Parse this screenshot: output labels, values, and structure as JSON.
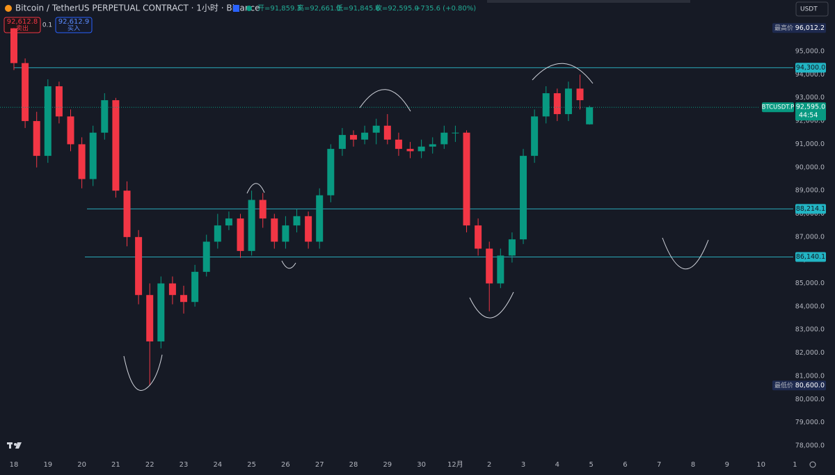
{
  "header": {
    "symbol": "Bitcoin / TetherUS PERPETUAL CONTRACT · 1小时 · Binance",
    "open_label": "开=91,859.3",
    "high_label": "高=92,661.0",
    "low_label": "低=91,845.8",
    "close_label": "收=92,595.0",
    "change": "+735.6 (+0.80%)",
    "sell_price": "92,612.8",
    "sell": "卖出",
    "quantity": "0.1",
    "buy_price": "92,612.9",
    "buy": "买入",
    "currency": "USDT"
  },
  "chart_data": {
    "type": "candlestick",
    "up_color": "#089981",
    "down_color": "#f23645",
    "grid": false,
    "x": [
      0,
      0.33,
      0.67,
      1,
      1.33,
      1.67,
      2,
      2.33,
      2.67,
      3,
      3.33,
      3.67,
      4,
      4.33,
      4.67,
      5,
      5.33,
      5.67,
      6,
      6.33,
      6.67,
      7,
      7.33,
      7.67,
      8,
      8.33,
      8.67,
      9,
      9.33,
      9.67,
      10,
      10.33,
      10.67,
      11,
      11.33,
      11.67,
      12,
      12.33,
      12.67,
      13,
      13.33,
      13.67,
      14,
      14.33,
      14.67,
      15,
      15.33,
      15.67,
      16,
      16.33,
      16.67,
      16.95
    ],
    "open": [
      96000,
      94500,
      92000,
      90500,
      93500,
      92200,
      91000,
      89500,
      91500,
      92900,
      89000,
      87000,
      84500,
      82500,
      85000,
      84500,
      84200,
      85500,
      86800,
      87500,
      87800,
      86400,
      88600,
      87800,
      86800,
      87500,
      87900,
      86800,
      88800,
      90800,
      91400,
      91200,
      91500,
      91800,
      91200,
      90800,
      90700,
      90900,
      91000,
      91500,
      91500,
      87500,
      86500,
      85000,
      86200,
      86900,
      90500,
      92200,
      93200,
      92300,
      93400,
      91859.3
    ],
    "high": [
      96012.2,
      94700,
      92400,
      93800,
      93700,
      92500,
      91300,
      91800,
      93200,
      93000,
      89400,
      87300,
      85000,
      85300,
      85300,
      84900,
      85800,
      87100,
      88000,
      88100,
      88000,
      89000,
      88900,
      88000,
      87900,
      88200,
      88100,
      89100,
      91000,
      91700,
      91600,
      91800,
      92100,
      92300,
      91500,
      91100,
      91200,
      91300,
      91800,
      91800,
      91600,
      87800,
      86800,
      86500,
      87200,
      90800,
      92500,
      93500,
      93400,
      93700,
      94000,
      92661.0
    ],
    "low": [
      94200,
      91700,
      90000,
      90200,
      91900,
      90700,
      89100,
      89200,
      91200,
      88700,
      86600,
      84100,
      80600,
      82200,
      84100,
      83700,
      84000,
      85300,
      86500,
      87300,
      86100,
      86200,
      87400,
      86500,
      86500,
      87200,
      86500,
      86500,
      88500,
      90500,
      90900,
      91000,
      91000,
      91000,
      90500,
      90400,
      90400,
      90600,
      90800,
      91100,
      87200,
      86200,
      83800,
      84800,
      85900,
      86700,
      90200,
      91900,
      92000,
      92000,
      92500,
      91845.8
    ],
    "close": [
      94500,
      92000,
      90500,
      93500,
      92200,
      91000,
      89500,
      91500,
      92900,
      89000,
      87000,
      84500,
      82500,
      85000,
      84500,
      84200,
      85500,
      86800,
      87500,
      87800,
      86400,
      88600,
      87800,
      86800,
      87500,
      87900,
      86800,
      88800,
      90800,
      91400,
      91200,
      91500,
      91800,
      91200,
      90800,
      90700,
      90900,
      91000,
      91500,
      91500,
      87500,
      86500,
      85000,
      86200,
      86900,
      90500,
      92200,
      93200,
      92300,
      93400,
      92900,
      92595.0
    ],
    "xlim": [
      -0.41,
      23.36
    ],
    "xticks": [
      {
        "value": 0,
        "label": "18"
      },
      {
        "value": 1,
        "label": "19"
      },
      {
        "value": 2,
        "label": "20"
      },
      {
        "value": 3,
        "label": "21"
      },
      {
        "value": 4,
        "label": "22"
      },
      {
        "value": 5,
        "label": "23"
      },
      {
        "value": 6,
        "label": "24"
      },
      {
        "value": 7,
        "label": "25"
      },
      {
        "value": 8,
        "label": "26"
      },
      {
        "value": 9,
        "label": "27"
      },
      {
        "value": 10,
        "label": "28"
      },
      {
        "value": 11,
        "label": "29"
      },
      {
        "value": 12,
        "label": "30"
      },
      {
        "value": 13,
        "label": "12月"
      },
      {
        "value": 14,
        "label": "2"
      },
      {
        "value": 15,
        "label": "3"
      },
      {
        "value": 16,
        "label": "4"
      },
      {
        "value": 17,
        "label": "5"
      },
      {
        "value": 18,
        "label": "6"
      },
      {
        "value": 19,
        "label": "7"
      },
      {
        "value": 20,
        "label": "8"
      },
      {
        "value": 21,
        "label": "9"
      },
      {
        "value": 22,
        "label": "10"
      },
      {
        "value": 23,
        "label": "1"
      }
    ],
    "ylim": [
      77580,
      96320
    ],
    "yticks": [
      {
        "value": 78000,
        "label": "78,000.0"
      },
      {
        "value": 79000,
        "label": "79,000.0"
      },
      {
        "value": 80000,
        "label": "80,000.0"
      },
      {
        "value": 81000,
        "label": "81,000.0"
      },
      {
        "value": 82000,
        "label": "82,000.0"
      },
      {
        "value": 83000,
        "label": "83,000.0"
      },
      {
        "value": 84000,
        "label": "84,000.0"
      },
      {
        "value": 85000,
        "label": "85,000.0"
      },
      {
        "value": 86000,
        "label": "86,000.0"
      },
      {
        "value": 87000,
        "label": "87,000.0"
      },
      {
        "value": 88000,
        "label": "88,000.0"
      },
      {
        "value": 89000,
        "label": "89,000.0"
      },
      {
        "value": 90000,
        "label": "90,000.0"
      },
      {
        "value": 91000,
        "label": "91,000.0"
      },
      {
        "value": 92000,
        "label": "92,000.0"
      },
      {
        "value": 93000,
        "label": "93,000.0"
      },
      {
        "value": 94000,
        "label": "94,000.0"
      },
      {
        "value": 95000,
        "label": "95,000.0"
      }
    ],
    "levels": [
      {
        "value": 94300,
        "label": "94,300.0"
      },
      {
        "value": 88214.1,
        "label": "88,214.1"
      },
      {
        "value": 86140.1,
        "label": "86,140.1"
      }
    ],
    "max_marker": {
      "label": "最高价",
      "value": 96012.2,
      "value_label": "96,012.2"
    },
    "min_marker": {
      "label": "最低价",
      "value": 80600,
      "value_label": "80,600.0"
    },
    "last": {
      "symbol": "BTCUSDT.P",
      "value": 92595.0,
      "value_label": "92,595.0",
      "countdown": "44:54"
    }
  }
}
